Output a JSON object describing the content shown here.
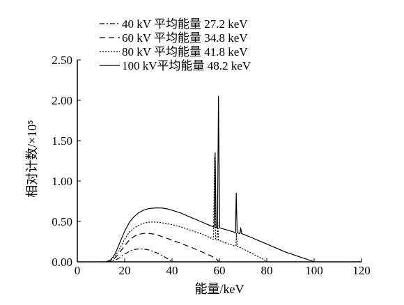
{
  "chart_data": {
    "type": "line",
    "xlabel": "能量/keV",
    "ylabel": "相对计数/×10⁵",
    "xlim": [
      0,
      120
    ],
    "ylim": [
      0,
      2.5
    ],
    "x_ticks": [
      {
        "value": 0,
        "label": "0"
      },
      {
        "value": 20,
        "label": "20"
      },
      {
        "value": 40,
        "label": "40"
      },
      {
        "value": 60,
        "label": "60"
      },
      {
        "value": 80,
        "label": "80"
      },
      {
        "value": 100,
        "label": "100"
      },
      {
        "value": 120,
        "label": "120"
      }
    ],
    "y_ticks": [
      {
        "value": 0,
        "label": "0.00"
      },
      {
        "value": 0.5,
        "label": "0.50"
      },
      {
        "value": 1.0,
        "label": "1.00"
      },
      {
        "value": 1.5,
        "label": "1.50"
      },
      {
        "value": 2.0,
        "label": "2.00"
      },
      {
        "value": 2.5,
        "label": "2.50"
      }
    ],
    "grid": false,
    "legend_position": "top",
    "series": [
      {
        "name": "40 kV 平均能量 27.2 keV",
        "style": "dashdot",
        "points": [
          [
            12,
            0
          ],
          [
            14,
            0.005
          ],
          [
            16,
            0.02
          ],
          [
            18,
            0.055
          ],
          [
            20,
            0.095
          ],
          [
            22,
            0.13
          ],
          [
            24,
            0.152
          ],
          [
            26,
            0.16
          ],
          [
            28,
            0.158
          ],
          [
            30,
            0.148
          ],
          [
            32,
            0.13
          ],
          [
            34,
            0.105
          ],
          [
            36,
            0.075
          ],
          [
            38,
            0.04
          ],
          [
            40,
            0
          ]
        ]
      },
      {
        "name": "60 kV 平均能量 34.8 keV",
        "style": "dashed",
        "points": [
          [
            12,
            0
          ],
          [
            14,
            0.01
          ],
          [
            16,
            0.05
          ],
          [
            18,
            0.12
          ],
          [
            20,
            0.2
          ],
          [
            22,
            0.27
          ],
          [
            24,
            0.315
          ],
          [
            26,
            0.34
          ],
          [
            28,
            0.352
          ],
          [
            30,
            0.352
          ],
          [
            32,
            0.345
          ],
          [
            34,
            0.33
          ],
          [
            36,
            0.31
          ],
          [
            40,
            0.27
          ],
          [
            44,
            0.225
          ],
          [
            48,
            0.18
          ],
          [
            52,
            0.13
          ],
          [
            56,
            0.08
          ],
          [
            58,
            0.05
          ],
          [
            60,
            0
          ]
        ]
      },
      {
        "name": "80 kV 平均能量 41.8 keV",
        "style": "dotted",
        "points": [
          [
            12,
            0
          ],
          [
            14,
            0.015
          ],
          [
            16,
            0.07
          ],
          [
            18,
            0.17
          ],
          [
            20,
            0.28
          ],
          [
            22,
            0.37
          ],
          [
            24,
            0.42
          ],
          [
            26,
            0.455
          ],
          [
            28,
            0.478
          ],
          [
            30,
            0.49
          ],
          [
            32,
            0.493
          ],
          [
            34,
            0.49
          ],
          [
            36,
            0.482
          ],
          [
            40,
            0.46
          ],
          [
            44,
            0.43
          ],
          [
            48,
            0.39
          ],
          [
            52,
            0.35
          ],
          [
            56,
            0.3
          ],
          [
            57.5,
            0.28
          ],
          [
            58,
            1.3
          ],
          [
            58.4,
            0.28
          ],
          [
            59,
            0.27
          ],
          [
            59.3,
            0.5
          ],
          [
            59.6,
            0.27
          ],
          [
            62,
            0.24
          ],
          [
            66,
            0.2
          ],
          [
            67,
            0.2
          ],
          [
            67.2,
            0.35
          ],
          [
            67.5,
            0.19
          ],
          [
            70,
            0.16
          ],
          [
            74,
            0.1
          ],
          [
            78,
            0.04
          ],
          [
            80,
            0
          ]
        ]
      },
      {
        "name": "100 kV平均能量 48.2 keV",
        "style": "solid",
        "points": [
          [
            12,
            0
          ],
          [
            14,
            0.02
          ],
          [
            16,
            0.1
          ],
          [
            18,
            0.24
          ],
          [
            20,
            0.38
          ],
          [
            22,
            0.49
          ],
          [
            24,
            0.56
          ],
          [
            26,
            0.61
          ],
          [
            28,
            0.64
          ],
          [
            30,
            0.658
          ],
          [
            32,
            0.665
          ],
          [
            34,
            0.668
          ],
          [
            36,
            0.665
          ],
          [
            38,
            0.655
          ],
          [
            40,
            0.64
          ],
          [
            44,
            0.6
          ],
          [
            48,
            0.55
          ],
          [
            52,
            0.5
          ],
          [
            56,
            0.45
          ],
          [
            57.8,
            0.43
          ],
          [
            58.2,
            1.35
          ],
          [
            58.6,
            0.43
          ],
          [
            59.2,
            0.42
          ],
          [
            59.6,
            2.05
          ],
          [
            60.1,
            0.42
          ],
          [
            62,
            0.405
          ],
          [
            66,
            0.37
          ],
          [
            66.8,
            0.36
          ],
          [
            67.1,
            0.85
          ],
          [
            67.5,
            0.36
          ],
          [
            68.7,
            0.35
          ],
          [
            69,
            0.42
          ],
          [
            69.4,
            0.35
          ],
          [
            72,
            0.32
          ],
          [
            76,
            0.27
          ],
          [
            80,
            0.22
          ],
          [
            84,
            0.17
          ],
          [
            88,
            0.12
          ],
          [
            92,
            0.08
          ],
          [
            96,
            0.04
          ],
          [
            99,
            0.01
          ],
          [
            100,
            0
          ]
        ]
      }
    ]
  }
}
